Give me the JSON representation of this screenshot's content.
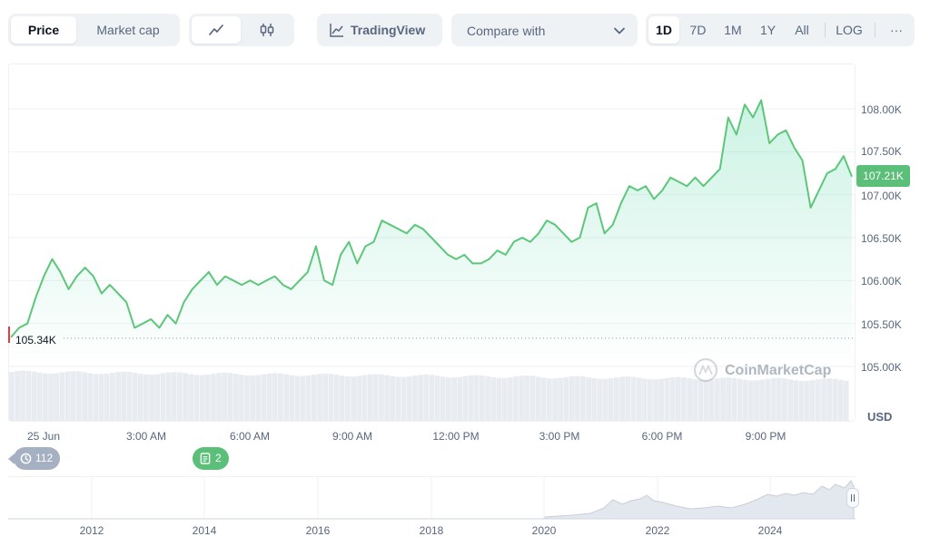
{
  "tabs": {
    "price": "Price",
    "market_cap": "Market cap"
  },
  "chart_type_icons": {
    "line": "line-chart-icon",
    "candles": "candlestick-icon"
  },
  "tradingview": {
    "label": "TradingView",
    "icon": "trendline-icon"
  },
  "compare": {
    "label": "Compare with"
  },
  "ranges": {
    "d1": "1D",
    "d7": "7D",
    "m1": "1M",
    "y1": "1Y",
    "all": "All",
    "log": "LOG",
    "more": "···"
  },
  "chart": {
    "currency": "USD",
    "current_price": "107.21K",
    "open_price": "105.34K",
    "watermark": "CoinMarketCap",
    "y_ticks": [
      "108.00K",
      "107.50K",
      "107.00K",
      "106.50K",
      "106.00K",
      "105.50K",
      "105.00K"
    ],
    "x_ticks": [
      "25 Jun",
      "3:00 AM",
      "6:00 AM",
      "9:00 AM",
      "12:00 PM",
      "3:00 PM",
      "6:00 PM",
      "9:00 PM"
    ]
  },
  "events": {
    "history": "112",
    "news": "2"
  },
  "navigator": {
    "years": [
      "2012",
      "2014",
      "2016",
      "2018",
      "2020",
      "2022",
      "2024"
    ]
  },
  "colors": {
    "up": "#16c784",
    "line": "#5cc77a",
    "badge": "#5bbf7a",
    "muted": "#58667e",
    "panel": "#eff2f5"
  },
  "chart_data": {
    "type": "area",
    "currency": "USD",
    "ylim": [
      104.9,
      108.3
    ],
    "y_unit": "K",
    "last_price": 107.21,
    "open_price": 105.34,
    "x_ticks": [
      "25 Jun",
      "3:00 AM",
      "6:00 AM",
      "9:00 AM",
      "12:00 PM",
      "3:00 PM",
      "6:00 PM",
      "9:00 PM"
    ],
    "values": [
      105.34,
      105.45,
      105.5,
      105.8,
      106.05,
      106.25,
      106.1,
      105.9,
      106.05,
      106.15,
      106.05,
      105.85,
      105.95,
      105.85,
      105.75,
      105.45,
      105.5,
      105.55,
      105.45,
      105.6,
      105.5,
      105.75,
      105.9,
      106.0,
      106.1,
      105.95,
      106.05,
      106.0,
      105.95,
      106.0,
      105.95,
      106.0,
      106.05,
      105.95,
      105.9,
      106.0,
      106.1,
      106.4,
      106.0,
      105.95,
      106.3,
      106.45,
      106.2,
      106.4,
      106.45,
      106.7,
      106.65,
      106.6,
      106.55,
      106.65,
      106.6,
      106.5,
      106.4,
      106.3,
      106.25,
      106.3,
      106.2,
      106.2,
      106.25,
      106.35,
      106.3,
      106.45,
      106.5,
      106.45,
      106.55,
      106.7,
      106.65,
      106.55,
      106.45,
      106.5,
      106.85,
      106.9,
      106.55,
      106.65,
      106.9,
      107.1,
      107.05,
      107.1,
      106.95,
      107.05,
      107.2,
      107.15,
      107.1,
      107.2,
      107.1,
      107.2,
      107.3,
      107.9,
      107.7,
      108.05,
      107.9,
      108.1,
      107.6,
      107.7,
      107.75,
      107.55,
      107.4,
      106.85,
      107.05,
      107.25,
      107.3,
      107.45,
      107.21
    ]
  }
}
